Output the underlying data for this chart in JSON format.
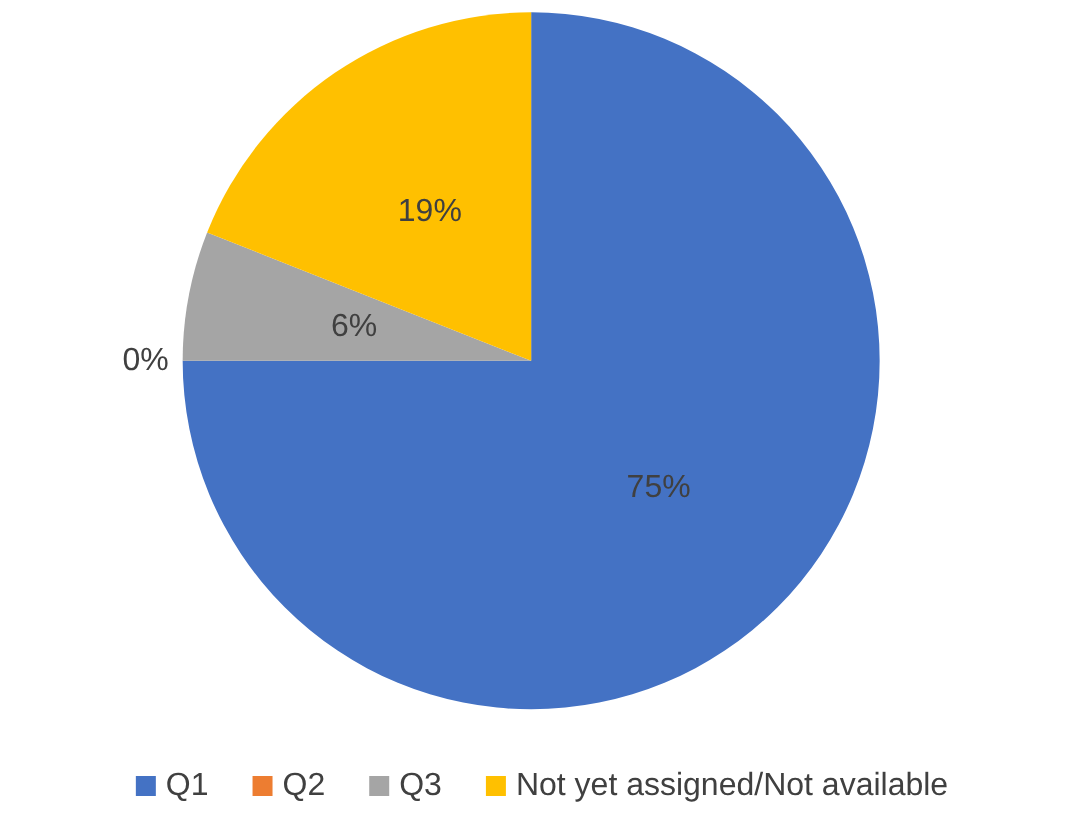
{
  "chart_data": {
    "type": "pie",
    "categories": [
      "Q1",
      "Q2",
      "Q3",
      "Not yet assigned/Not available"
    ],
    "values": [
      75,
      0,
      6,
      19
    ],
    "colors": [
      "#4472c4",
      "#ed7d31",
      "#a5a5a5",
      "#ffc000"
    ],
    "value_labels": [
      "75%",
      "0%",
      "6%",
      "19%"
    ],
    "legend": "bottom"
  }
}
